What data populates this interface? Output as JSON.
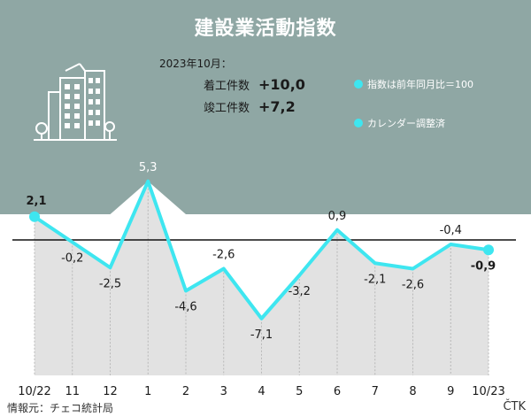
{
  "title": "建設業活動指数",
  "info": {
    "date": "2023年10月：",
    "started_label": "着工件数",
    "started_value": "+10,0",
    "completed_label": "竣工件数",
    "completed_value": "+7,2"
  },
  "legend": {
    "yoy": "指数は前年同月比＝100",
    "seasonal": "カレンダー調整済"
  },
  "source": "情報元：チェコ統計局",
  "brand": "ČTK",
  "colors": {
    "background": "#8fa7a4",
    "line": "#3ee6f0",
    "fill": "#e2e2e2",
    "grid": "#b8b8b8",
    "zero_line": "#111111",
    "title": "#ffffff"
  },
  "icon": "building-icon",
  "chart_data": {
    "type": "line",
    "categories": [
      "10/22",
      "11",
      "12",
      "1",
      "2",
      "3",
      "4",
      "5",
      "6",
      "7",
      "8",
      "9",
      "10/23"
    ],
    "values": [
      2.1,
      -0.2,
      -2.5,
      5.3,
      -4.6,
      -2.6,
      -7.1,
      -3.2,
      0.9,
      -2.1,
      -2.6,
      -0.4,
      -0.9
    ],
    "labels": [
      "2,1",
      "-0,2",
      "-2,5",
      "5,3",
      "-4,6",
      "-2,6",
      "-7,1",
      "-3,2",
      "0,9",
      "-2,1",
      "-2,6",
      "-0,4",
      "-0,9"
    ],
    "highlighted": [
      0,
      12
    ],
    "ylim": [
      -10.5,
      7.5
    ],
    "grid": "vertical",
    "title": "建設業活動指数",
    "xlabel": "",
    "ylabel": ""
  }
}
